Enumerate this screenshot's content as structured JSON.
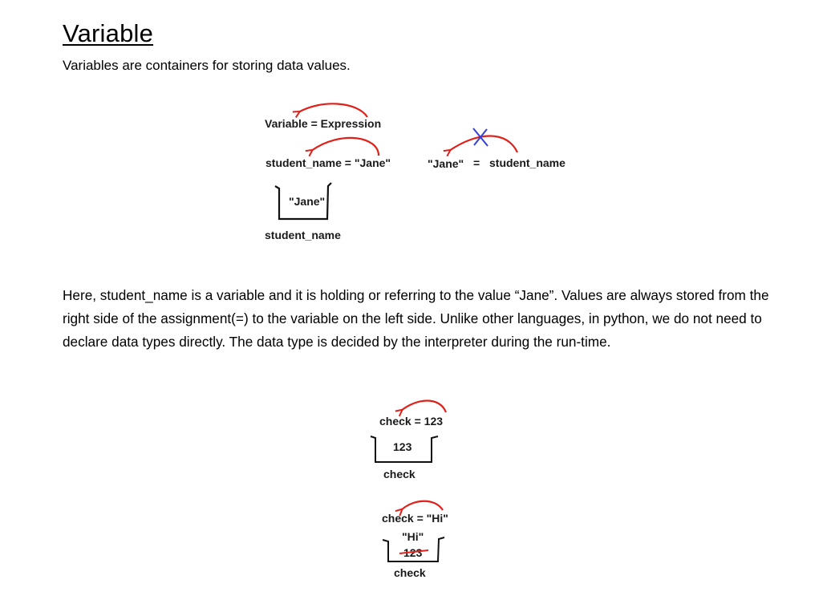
{
  "heading": "Variable",
  "subheading": "Variables are containers for storing data values.",
  "paragraph": "Here, student_name is a variable and it is holding or referring to the value “Jane”. Values are always stored from the right side of the assignment(=) to the variable on the left side. Unlike other languages, in python, we do not need to declare data types directly. The data type is decided by the interpreter during the run-time.",
  "diagram1": {
    "expr": "Variable = Expression",
    "assign": "student_name = \"Jane\"",
    "wrong_value": "\"Jane\"",
    "wrong_eq": "=",
    "wrong_var": "student_name",
    "box_value": "\"Jane\"",
    "box_label": "student_name"
  },
  "diagram2": {
    "assign": "check =  123",
    "box_value": "123",
    "box_label": "check"
  },
  "diagram3": {
    "assign": "check = \"Hi\"",
    "new_value": "\"Hi\"",
    "old_value": "123",
    "box_label": "check"
  },
  "colors": {
    "arrow": "#e0201a",
    "cross": "#3340d6",
    "text": "#1a1a1a"
  }
}
